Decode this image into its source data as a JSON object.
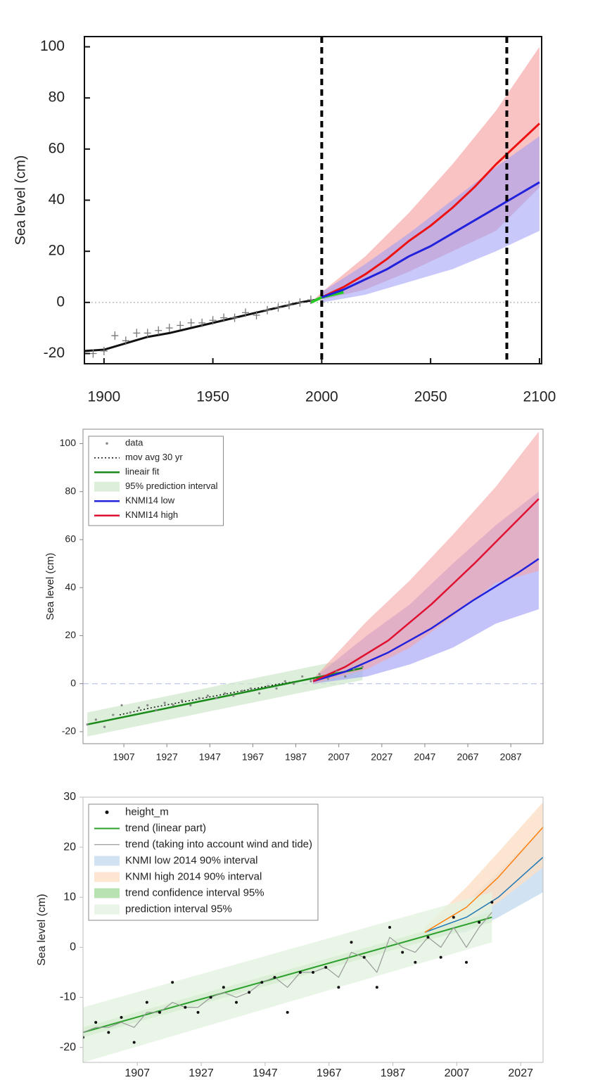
{
  "chart_data": [
    {
      "type": "line",
      "y_label": "Sea level (cm)",
      "xlim": [
        1891,
        2101
      ],
      "ylim": [
        -24,
        104
      ],
      "xticks": [
        1900,
        1950,
        2000,
        2050,
        2100
      ],
      "yticks": [
        -20,
        0,
        20,
        40,
        60,
        80,
        100
      ],
      "vlines": [
        2000,
        2085
      ],
      "hline": {
        "value": 0,
        "color": "#999999",
        "dash": "dotted"
      },
      "series": [
        {
          "kind": "band",
          "color": "#f7a9a9",
          "opacity": 0.7,
          "x": [
            1995,
            2000,
            2020,
            2040,
            2060,
            2080,
            2100
          ],
          "lower": [
            0,
            1,
            5,
            12,
            20,
            28,
            45
          ],
          "upper": [
            0,
            4,
            18,
            35,
            54,
            75,
            100
          ]
        },
        {
          "kind": "band",
          "color": "#9b9bf5",
          "opacity": 0.55,
          "x": [
            2000,
            2020,
            2040,
            2060,
            2080,
            2100
          ],
          "lower": [
            0,
            3,
            8,
            13,
            20,
            28
          ],
          "upper": [
            4,
            15,
            27,
            40,
            53,
            65
          ]
        },
        {
          "kind": "points",
          "marker": "plus",
          "color": "#777777",
          "x": [
            1895,
            1900,
            1905,
            1910,
            1915,
            1920,
            1925,
            1930,
            1935,
            1940,
            1945,
            1950,
            1955,
            1960,
            1965,
            1970,
            1975,
            1980,
            1985,
            1990,
            1995
          ],
          "values": [
            -20,
            -19,
            -13,
            -15,
            -12,
            -12,
            -11,
            -10,
            -9,
            -8,
            -8,
            -7,
            -6,
            -6,
            -4,
            -5,
            -3,
            -2,
            -1,
            0,
            1
          ]
        },
        {
          "kind": "line",
          "color": "#111111",
          "width": 3,
          "x": [
            1891,
            1900,
            1910,
            1920,
            1930,
            1940,
            1950,
            1960,
            1970,
            1980,
            1990,
            1997
          ],
          "values": [
            -19,
            -18.5,
            -16,
            -13.5,
            -12,
            -10,
            -8,
            -6,
            -4,
            -2,
            0,
            1
          ]
        },
        {
          "kind": "line",
          "color": "#22cc22",
          "width": 4,
          "x": [
            1995,
            2000,
            2005,
            2010
          ],
          "values": [
            0,
            2,
            3,
            4
          ]
        },
        {
          "kind": "line",
          "color": "#ee1111",
          "width": 3,
          "x": [
            2000,
            2010,
            2020,
            2030,
            2040,
            2050,
            2060,
            2070,
            2080,
            2090,
            2100
          ],
          "values": [
            2,
            6,
            11,
            17,
            24,
            30,
            37,
            45,
            54,
            62,
            70
          ]
        },
        {
          "kind": "line",
          "color": "#2222dd",
          "width": 3,
          "x": [
            2000,
            2010,
            2020,
            2030,
            2040,
            2050,
            2060,
            2070,
            2080,
            2090,
            2100
          ],
          "values": [
            2,
            5,
            9,
            13,
            18,
            22,
            27,
            32,
            37,
            42,
            47
          ]
        }
      ]
    },
    {
      "type": "line",
      "y_label": "Sea level (cm)",
      "legend": "upper left",
      "xlim": [
        1888,
        2102
      ],
      "ylim": [
        -25,
        106
      ],
      "xticks": [
        1907,
        1927,
        1947,
        1967,
        1987,
        2007,
        2027,
        2047,
        2067,
        2087
      ],
      "yticks": [
        -20,
        0,
        20,
        40,
        60,
        80,
        100
      ],
      "hline": {
        "value": 0,
        "color": "#b0b8e8",
        "dash": "dashed"
      },
      "series": [
        {
          "name": "data",
          "kind": "points",
          "marker": "dot",
          "color": "#888888",
          "x": [
            1890,
            1894,
            1898,
            1902,
            1906,
            1910,
            1914,
            1918,
            1922,
            1926,
            1930,
            1934,
            1938,
            1942,
            1946,
            1950,
            1954,
            1958,
            1962,
            1966,
            1970,
            1974,
            1978,
            1982,
            1986,
            1990,
            1994,
            1998,
            2002,
            2006,
            2010,
            2014,
            2018
          ],
          "values": [
            -17,
            -15,
            -18,
            -13,
            -9,
            -12,
            -10,
            -9,
            -11,
            -8,
            -9,
            -7,
            -9,
            -6,
            -5,
            -6,
            -4,
            -5,
            -3,
            -2,
            -4,
            -1,
            -2,
            1,
            0,
            3,
            1,
            4,
            2,
            5,
            3,
            6,
            7
          ]
        },
        {
          "name": "mov avg 30 yr",
          "kind": "line",
          "dash": "dotted",
          "color": "#111111",
          "width": 1.5,
          "x": [
            1905,
            1920,
            1935,
            1950,
            1965,
            1980,
            1995,
            2003
          ],
          "values": [
            -13,
            -10,
            -7.5,
            -5,
            -2.5,
            0,
            2,
            3.5
          ]
        },
        {
          "name": "lineair fit",
          "kind": "line",
          "color": "#1a8a1a",
          "width": 2.5,
          "x": [
            1890,
            2018
          ],
          "values": [
            -17,
            6.5
          ]
        },
        {
          "name": "95% prediction interval",
          "kind": "band",
          "color": "#cfe8cc",
          "opacity": 0.7,
          "x": [
            1890,
            2018
          ],
          "lower": [
            -22,
            1.5
          ],
          "upper": [
            -12,
            11.5
          ]
        },
        {
          "kind": "band",
          "color": "#9b9bf5",
          "opacity": 0.6,
          "x": [
            1995,
            2020,
            2040,
            2060,
            2080,
            2100
          ],
          "lower": [
            0,
            3,
            8,
            15,
            25,
            31
          ],
          "upper": [
            2,
            20,
            33,
            50,
            66,
            80
          ]
        },
        {
          "kind": "band",
          "color": "#f5a3a3",
          "opacity": 0.6,
          "x": [
            1995,
            2020,
            2040,
            2060,
            2080,
            2100
          ],
          "lower": [
            0,
            6,
            15,
            28,
            42,
            47
          ],
          "upper": [
            2,
            26,
            43,
            62,
            82,
            105
          ]
        },
        {
          "name": "KNMI14 low",
          "kind": "line",
          "color": "#2222dd",
          "width": 2.5,
          "x": [
            1995,
            2010,
            2030,
            2050,
            2070,
            2090,
            2100
          ],
          "values": [
            1,
            5,
            13,
            23,
            35,
            46,
            52
          ]
        },
        {
          "name": "KNMI14 high",
          "kind": "line",
          "color": "#e01030",
          "width": 2.5,
          "x": [
            1995,
            2010,
            2030,
            2050,
            2070,
            2090,
            2100
          ],
          "values": [
            1,
            7,
            18,
            33,
            50,
            68,
            77
          ]
        }
      ]
    },
    {
      "type": "line",
      "y_label": "Sea level (cm)",
      "legend": "upper left",
      "xlim": [
        1890,
        2034
      ],
      "ylim": [
        -23,
        30
      ],
      "xticks": [
        1907,
        1927,
        1947,
        1967,
        1987,
        2007,
        2027
      ],
      "yticks": [
        -20,
        -10,
        0,
        10,
        20,
        30
      ],
      "series": [
        {
          "name": "height_m",
          "kind": "points",
          "marker": "dot",
          "color": "#111111",
          "x": [
            1890,
            1894,
            1898,
            1902,
            1906,
            1910,
            1914,
            1918,
            1922,
            1926,
            1930,
            1934,
            1938,
            1942,
            1946,
            1950,
            1954,
            1958,
            1962,
            1966,
            1970,
            1974,
            1978,
            1982,
            1986,
            1990,
            1994,
            1998,
            2002,
            2006,
            2010,
            2014,
            2018
          ],
          "values": [
            -18,
            -15,
            -17,
            -14,
            -19,
            -11,
            -13,
            -7,
            -12,
            -13,
            -10,
            -8,
            -11,
            -9,
            -7,
            -6,
            -13,
            -5,
            -5,
            -4,
            -8,
            1,
            -2,
            -8,
            4,
            -1,
            -3,
            2,
            -2,
            6,
            -3,
            5,
            9
          ]
        },
        {
          "name": "trend (linear part)",
          "kind": "line",
          "color": "#2ca02c",
          "width": 2,
          "x": [
            1890,
            2018
          ],
          "values": [
            -17,
            6
          ]
        },
        {
          "name": "trend (taking into account wind and tide)",
          "kind": "line",
          "color": "#9a9a9a",
          "width": 1.2,
          "x": [
            1890,
            1894,
            1898,
            1902,
            1906,
            1910,
            1914,
            1918,
            1922,
            1926,
            1930,
            1934,
            1938,
            1942,
            1946,
            1950,
            1954,
            1958,
            1962,
            1966,
            1970,
            1974,
            1978,
            1982,
            1986,
            1990,
            1994,
            1998,
            2002,
            2006,
            2010,
            2014,
            2018
          ],
          "values": [
            -17,
            -16,
            -16,
            -15,
            -16,
            -13,
            -13,
            -11,
            -12,
            -12,
            -10,
            -9,
            -10,
            -9,
            -7,
            -6,
            -8,
            -5,
            -5,
            -4,
            -6,
            -1,
            -2,
            -5,
            2,
            0,
            -1,
            2,
            0,
            4,
            0,
            4,
            7
          ]
        },
        {
          "name": "KNMI low 2014 90% interval",
          "kind": "band",
          "color": "#c6dbef",
          "opacity": 0.8,
          "x": [
            1997,
            2010,
            2020,
            2034
          ],
          "lower": [
            2,
            3,
            6,
            11
          ],
          "upper": [
            4,
            9,
            15,
            24
          ]
        },
        {
          "name": "KNMI high 2014 90% interval",
          "kind": "band",
          "color": "#fde0c5",
          "opacity": 0.8,
          "x": [
            1997,
            2010,
            2020,
            2034
          ],
          "lower": [
            2,
            5,
            9,
            16
          ],
          "upper": [
            4,
            12,
            19,
            29
          ]
        },
        {
          "name": "trend confidence interval 95%",
          "kind": "band",
          "color": "#a8dba0",
          "opacity": 0.8,
          "x": [
            1890,
            2018
          ],
          "lower": [
            -18,
            5
          ],
          "upper": [
            -16,
            7
          ]
        },
        {
          "name": "prediction interval 95%",
          "kind": "band",
          "color": "#e3f3e0",
          "opacity": 0.8,
          "x": [
            1890,
            2018
          ],
          "lower": [
            -23,
            1
          ],
          "upper": [
            -12,
            11
          ]
        },
        {
          "kind": "line",
          "color": "#1f77b4",
          "width": 1.5,
          "x": [
            1997,
            2010,
            2020,
            2034
          ],
          "values": [
            3,
            6,
            10,
            18
          ]
        },
        {
          "kind": "line",
          "color": "#ff7f0e",
          "width": 1.5,
          "x": [
            1997,
            2010,
            2020,
            2034
          ],
          "values": [
            3,
            8,
            14,
            24
          ]
        }
      ]
    }
  ]
}
